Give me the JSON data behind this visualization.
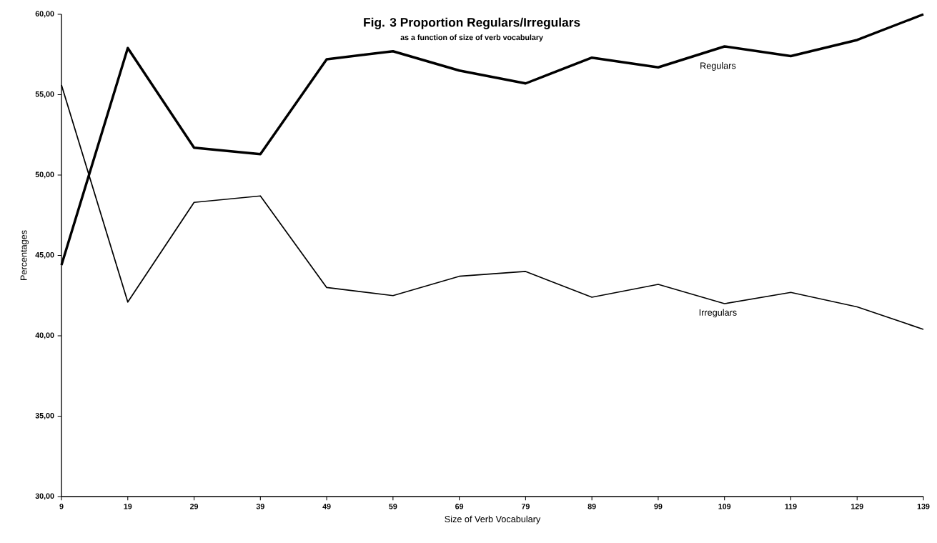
{
  "chart_data": {
    "type": "line",
    "title": "Fig. 3 Proportion  Regulars/Irregulars",
    "subtitle": "as a function of size of verb vocabulary",
    "xlabel": "Size of Verb Vocabulary",
    "ylabel": "Percentages",
    "x": [
      9,
      19,
      29,
      39,
      49,
      59,
      69,
      79,
      89,
      99,
      109,
      119,
      129,
      139
    ],
    "series": [
      {
        "name": "Regulars",
        "color": "#000000",
        "values": [
          44.4,
          57.9,
          51.7,
          51.3,
          57.2,
          57.7,
          56.5,
          55.7,
          57.3,
          56.7,
          58.0,
          57.4,
          58.4,
          60.0
        ]
      },
      {
        "name": "Irregulars",
        "color": "#000000",
        "values": [
          55.6,
          42.1,
          48.3,
          48.7,
          43.0,
          42.5,
          43.7,
          44.0,
          42.4,
          43.2,
          42.0,
          42.7,
          41.8,
          40.4
        ]
      }
    ],
    "xlim": [
      9,
      139
    ],
    "xticks": [
      9,
      19,
      29,
      39,
      49,
      59,
      69,
      79,
      89,
      99,
      109,
      119,
      129,
      139
    ],
    "ylim": [
      30,
      60
    ],
    "yticks": [
      {
        "value": 30,
        "label": "30,00"
      },
      {
        "value": 35,
        "label": "35,00"
      },
      {
        "value": 40,
        "label": "40,00"
      },
      {
        "value": 45,
        "label": "45,00"
      },
      {
        "value": 50,
        "label": "50,00"
      },
      {
        "value": 55,
        "label": "55,00"
      },
      {
        "value": 60,
        "label": "60,00"
      }
    ],
    "grid": false,
    "legend": false,
    "marker": "none",
    "line_style": "solid"
  }
}
